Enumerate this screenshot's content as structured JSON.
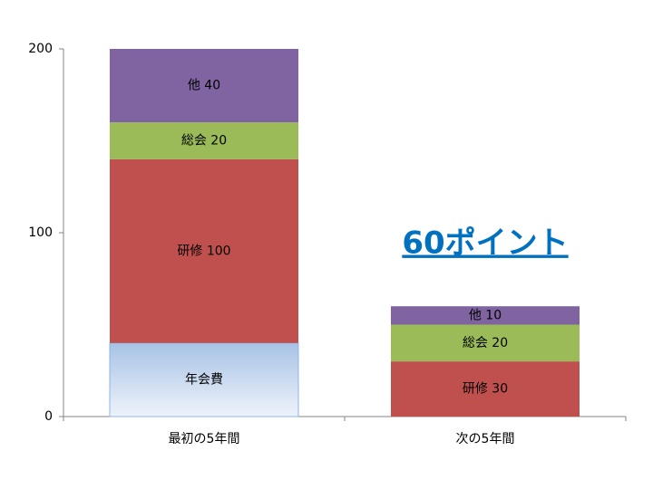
{
  "chart_data": {
    "type": "stacked_bar",
    "categories": [
      "最初の5年間",
      "次の5年間"
    ],
    "series": [
      {
        "name": "年会費",
        "color": "#a7c2e6",
        "values": [
          40,
          null
        ],
        "value_labels": [
          "年会費",
          null
        ]
      },
      {
        "name": "研修",
        "color": "#c0504d",
        "values": [
          100,
          30
        ],
        "value_labels": [
          "研修 100",
          "研修 30"
        ]
      },
      {
        "name": "総会",
        "color": "#9bbb59",
        "values": [
          20,
          20
        ],
        "value_labels": [
          "総会 20",
          "総会 20"
        ]
      },
      {
        "name": "他",
        "color": "#8064a2",
        "values": [
          40,
          10
        ],
        "value_labels": [
          "他 40",
          "他 10"
        ]
      }
    ],
    "ylim": [
      0,
      200
    ],
    "yticks": [
      0,
      100,
      200
    ],
    "annotation": "60ポイント"
  }
}
